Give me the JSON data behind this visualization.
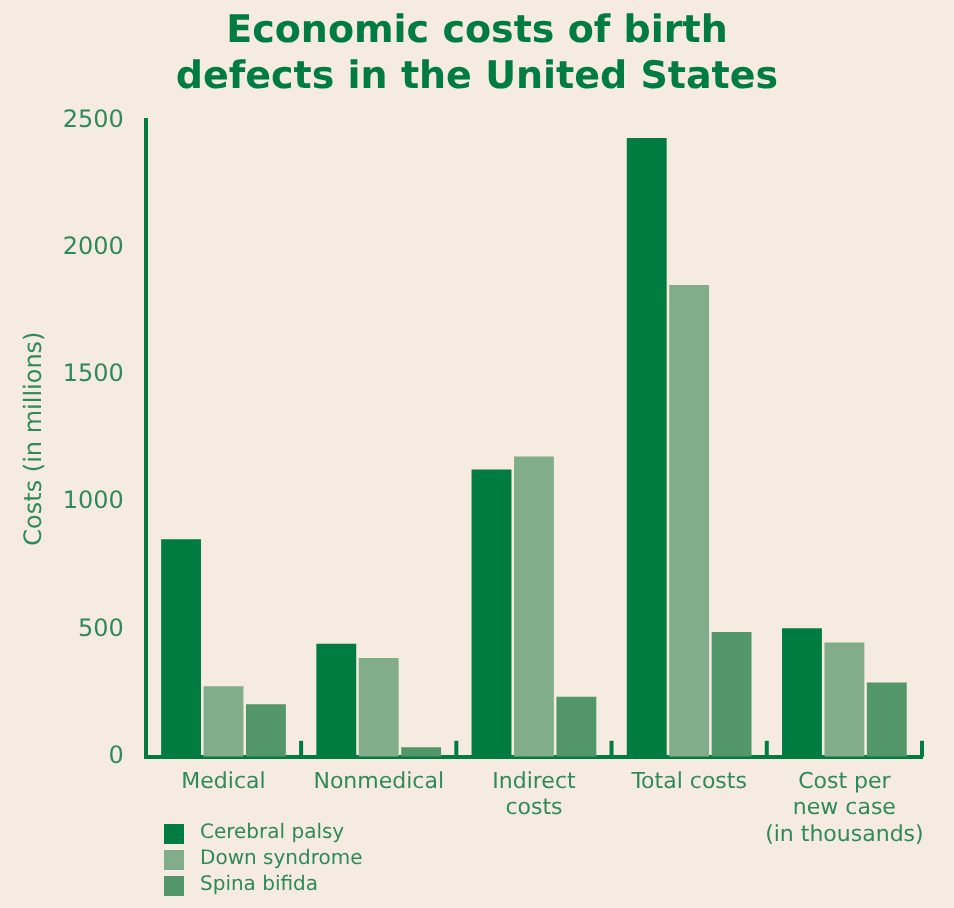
{
  "chart_data": {
    "type": "bar",
    "title": "Economic costs of birth defects in the United States",
    "ylabel": "Costs (in millions)",
    "categories": [
      "Medical",
      "Nonmedical",
      "Indirect\ncosts",
      "Total costs",
      "Cost per\nnew case\n(in thousands)"
    ],
    "series": [
      {
        "name": "Cerebral palsy",
        "color": "#007c41",
        "values": [
          855,
          444,
          1129,
          2431,
          505
        ]
      },
      {
        "name": "Down syndrome",
        "color": "#82ad8a",
        "values": [
          277,
          388,
          1180,
          1853,
          449
        ]
      },
      {
        "name": "Spina bifida",
        "color": "#52966a",
        "values": [
          206,
          38,
          236,
          490,
          292
        ]
      }
    ],
    "ylim": [
      0,
      2500
    ],
    "yticks": [
      0,
      500,
      1000,
      1500,
      2000,
      2500
    ],
    "grid": false,
    "legend": "bottom left"
  }
}
